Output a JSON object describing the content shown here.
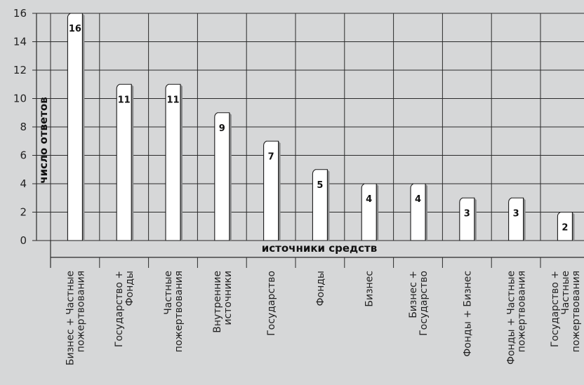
{
  "chart_data": {
    "type": "bar",
    "title": "",
    "xlabel": "источники средств",
    "ylabel": "число ответов",
    "ylim": [
      0,
      16
    ],
    "yticks": [
      0,
      2,
      4,
      6,
      8,
      10,
      12,
      14,
      16
    ],
    "grid": true,
    "categories": [
      [
        "Бизнес + Частные",
        "пожертвования"
      ],
      [
        "Государство +",
        "Фонды"
      ],
      [
        "Частные",
        "пожертвования"
      ],
      [
        "Внутренние",
        "источники"
      ],
      [
        "Государство"
      ],
      [
        "Фонды"
      ],
      [
        "Бизнес"
      ],
      [
        "Бизнес +",
        "Государство"
      ],
      [
        "Фонды + Бизнес"
      ],
      [
        "Фонды + Частные",
        "пожертвования"
      ],
      [
        "Государство +",
        "Частные",
        "пожертвования"
      ]
    ],
    "values": [
      16,
      11,
      11,
      9,
      7,
      5,
      4,
      4,
      3,
      3,
      2
    ],
    "colors": {
      "background": "#d6d7d8",
      "bar": "#ffffff",
      "grid": "#2a2a2a"
    }
  }
}
